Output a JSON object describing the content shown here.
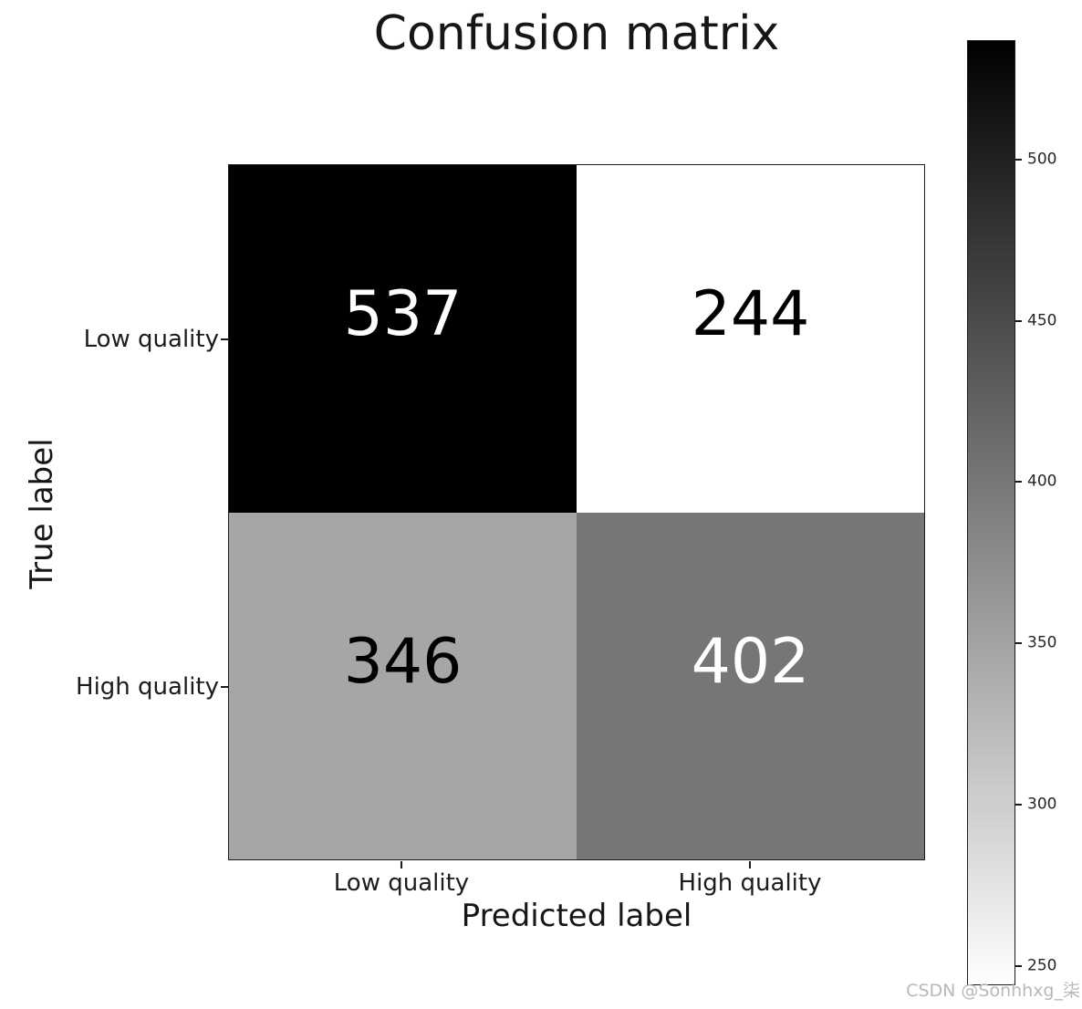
{
  "chart_data": {
    "type": "heatmap",
    "title": "Confusion matrix",
    "xlabel": "Predicted label",
    "ylabel": "True label",
    "x_categories": [
      "Low quality",
      "High quality"
    ],
    "y_categories": [
      "Low quality",
      "High quality"
    ],
    "matrix": [
      [
        537,
        244
      ],
      [
        346,
        402
      ]
    ],
    "cells": [
      {
        "true_label": "Low quality",
        "predicted_label": "Low quality",
        "value": 537,
        "bg": "#000000",
        "text_color": "#ffffff"
      },
      {
        "true_label": "Low quality",
        "predicted_label": "High quality",
        "value": 244,
        "bg": "#ffffff",
        "text_color": "#000000"
      },
      {
        "true_label": "High quality",
        "predicted_label": "Low quality",
        "value": 346,
        "bg": "#a6a6a6",
        "text_color": "#000000"
      },
      {
        "true_label": "High quality",
        "predicted_label": "High quality",
        "value": 402,
        "bg": "#767676",
        "text_color": "#ffffff"
      }
    ],
    "colormap": "gray_r",
    "colorbar": {
      "vmin": 244,
      "vmax": 537,
      "ticks": [
        250,
        300,
        350,
        400,
        450,
        500
      ],
      "top_color": "#000000",
      "bottom_color": "#ffffff"
    },
    "grid": false,
    "legend": "none",
    "watermark": "CSDN @Sonhhxg_柒"
  }
}
